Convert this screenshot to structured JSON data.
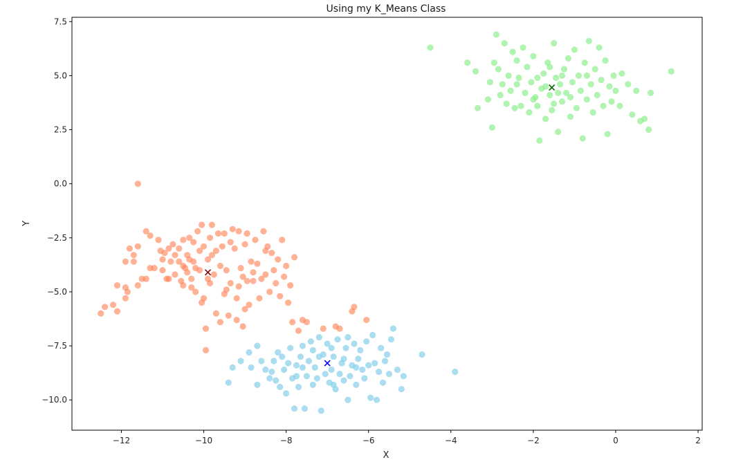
{
  "chart_data": {
    "type": "scatter",
    "title": "Using my K_Means Class",
    "xlabel": "X",
    "ylabel": "Y",
    "xlim": [
      -13.2,
      2.1
    ],
    "ylim": [
      -11.4,
      7.7
    ],
    "xticks": [
      -12,
      -10,
      -8,
      -6,
      -4,
      -2,
      0,
      2
    ],
    "xtick_labels": [
      "−12",
      "−10",
      "−8",
      "−6",
      "−4",
      "−2",
      "0",
      "2"
    ],
    "yticks": [
      -10.0,
      -7.5,
      -5.0,
      -2.5,
      0.0,
      2.5,
      5.0,
      7.5
    ],
    "ytick_labels": [
      "−10.0",
      "−7.5",
      "−5.0",
      "−2.5",
      "0.0",
      "2.5",
      "5.0",
      "7.5"
    ],
    "grid": false,
    "clusters": [
      {
        "color": "#ff7f50",
        "alpha": 0.6,
        "centroid": {
          "x": -9.9,
          "y": -4.1,
          "color": "#8b0000",
          "marker": "x"
        },
        "points": [
          [
            -11.6,
            0.0
          ],
          [
            -12.5,
            -6.0
          ],
          [
            -12.4,
            -5.7
          ],
          [
            -12.2,
            -5.6
          ],
          [
            -12.1,
            -5.9
          ],
          [
            -12.1,
            -4.7
          ],
          [
            -11.9,
            -4.8
          ],
          [
            -11.9,
            -5.3
          ],
          [
            -11.85,
            -5.0
          ],
          [
            -11.9,
            -3.6
          ],
          [
            -11.8,
            -3.0
          ],
          [
            -11.7,
            -3.6
          ],
          [
            -11.7,
            -3.3
          ],
          [
            -11.6,
            -4.7
          ],
          [
            -11.6,
            -2.9
          ],
          [
            -11.5,
            -4.4
          ],
          [
            -11.4,
            -4.4
          ],
          [
            -11.4,
            -2.2
          ],
          [
            -11.3,
            -3.9
          ],
          [
            -11.3,
            -2.4
          ],
          [
            -11.2,
            -3.9
          ],
          [
            -11.1,
            -2.6
          ],
          [
            -11.05,
            -3.1
          ],
          [
            -11.0,
            -3.5
          ],
          [
            -11.0,
            -4.0
          ],
          [
            -10.95,
            -3.2
          ],
          [
            -10.9,
            -4.4
          ],
          [
            -10.85,
            -3.0
          ],
          [
            -10.85,
            -4.4
          ],
          [
            -10.8,
            -3.6
          ],
          [
            -10.75,
            -2.8
          ],
          [
            -10.7,
            -3.3
          ],
          [
            -10.7,
            -4.2
          ],
          [
            -10.6,
            -3.0
          ],
          [
            -10.6,
            -3.6
          ],
          [
            -10.55,
            -4.5
          ],
          [
            -10.5,
            -3.8
          ],
          [
            -10.5,
            -2.6
          ],
          [
            -10.45,
            -3.9
          ],
          [
            -10.4,
            -4.1
          ],
          [
            -10.4,
            -3.3
          ],
          [
            -10.35,
            -2.5
          ],
          [
            -10.35,
            -3.5
          ],
          [
            -10.3,
            -4.4
          ],
          [
            -10.3,
            -4.8
          ],
          [
            -10.25,
            -2.7
          ],
          [
            -10.25,
            -3.6
          ],
          [
            -10.2,
            -3.9
          ],
          [
            -10.2,
            -5.0
          ],
          [
            -10.15,
            -2.2
          ],
          [
            -10.1,
            -4.0
          ],
          [
            -10.1,
            -3.1
          ],
          [
            -10.05,
            -1.9
          ],
          [
            -10.05,
            -5.5
          ],
          [
            -10.0,
            -2.9
          ],
          [
            -10.0,
            -5.3
          ],
          [
            -9.95,
            -6.7
          ],
          [
            -9.95,
            -7.7
          ],
          [
            -9.9,
            -3.5
          ],
          [
            -9.9,
            -4.4
          ],
          [
            -9.85,
            -2.5
          ],
          [
            -9.85,
            -4.6
          ],
          [
            -9.8,
            -1.9
          ],
          [
            -9.8,
            -3.3
          ],
          [
            -9.75,
            -4.2
          ],
          [
            -9.7,
            -6.0
          ],
          [
            -9.65,
            -2.3
          ],
          [
            -9.6,
            -3.8
          ],
          [
            -9.6,
            -6.4
          ],
          [
            -9.55,
            -2.9
          ],
          [
            -9.5,
            -5.1
          ],
          [
            -9.5,
            -2.3
          ],
          [
            -9.45,
            -4.0
          ],
          [
            -9.4,
            -6.1
          ],
          [
            -9.35,
            -2.7
          ],
          [
            -9.35,
            -4.6
          ],
          [
            -9.3,
            -2.1
          ],
          [
            -9.25,
            -3.0
          ],
          [
            -9.2,
            -5.3
          ],
          [
            -9.2,
            -6.3
          ],
          [
            -9.15,
            -2.2
          ],
          [
            -9.1,
            -3.9
          ],
          [
            -9.05,
            -6.6
          ],
          [
            -9.05,
            -4.3
          ],
          [
            -9.0,
            -2.8
          ],
          [
            -9.0,
            -5.8
          ],
          [
            -8.95,
            -2.3
          ],
          [
            -8.9,
            -5.6
          ],
          [
            -8.85,
            -3.6
          ],
          [
            -8.8,
            -4.1
          ],
          [
            -8.8,
            -4.5
          ],
          [
            -8.75,
            -2.6
          ],
          [
            -8.7,
            -3.7
          ],
          [
            -8.65,
            -5.3
          ],
          [
            -8.6,
            -4.4
          ],
          [
            -8.55,
            -2.2
          ],
          [
            -8.5,
            -3.1
          ],
          [
            -8.5,
            -4.2
          ],
          [
            -8.45,
            -2.9
          ],
          [
            -8.4,
            -5.0
          ],
          [
            -8.35,
            -3.2
          ],
          [
            -8.3,
            -4.0
          ],
          [
            -8.25,
            -4.6
          ],
          [
            -8.2,
            -3.5
          ],
          [
            -8.15,
            -5.2
          ],
          [
            -8.1,
            -2.6
          ],
          [
            -8.05,
            -4.3
          ],
          [
            -8.0,
            -3.8
          ],
          [
            -7.95,
            -5.5
          ],
          [
            -7.9,
            -4.7
          ],
          [
            -7.85,
            -6.4
          ],
          [
            -7.8,
            -3.4
          ],
          [
            -7.7,
            -6.8
          ],
          [
            -7.6,
            -6.3
          ],
          [
            -7.5,
            -6.4
          ],
          [
            -7.1,
            -6.7
          ],
          [
            -6.8,
            -6.6
          ],
          [
            -6.7,
            -6.7
          ],
          [
            -6.4,
            -5.9
          ],
          [
            -6.35,
            -5.7
          ],
          [
            -6.05,
            -6.3
          ],
          [
            -9.45,
            -4.9
          ],
          [
            -9.15,
            -4.75
          ],
          [
            -8.95,
            -4.5
          ],
          [
            -9.7,
            -3.1
          ],
          [
            -10.5,
            -4.7
          ]
        ]
      },
      {
        "color": "#87ceeb",
        "alpha": 0.7,
        "centroid": {
          "x": -7.0,
          "y": -8.3,
          "color": "#0000ff",
          "marker": "x"
        },
        "points": [
          [
            -9.4,
            -9.2
          ],
          [
            -9.3,
            -8.5
          ],
          [
            -9.1,
            -8.2
          ],
          [
            -8.9,
            -7.8
          ],
          [
            -8.85,
            -8.5
          ],
          [
            -8.7,
            -9.3
          ],
          [
            -8.6,
            -8.2
          ],
          [
            -8.5,
            -8.6
          ],
          [
            -8.4,
            -9.0
          ],
          [
            -8.35,
            -8.7
          ],
          [
            -8.3,
            -8.2
          ],
          [
            -8.25,
            -9.1
          ],
          [
            -8.2,
            -7.8
          ],
          [
            -8.15,
            -9.4
          ],
          [
            -8.1,
            -8.0
          ],
          [
            -8.05,
            -8.6
          ],
          [
            -8.0,
            -9.7
          ],
          [
            -7.95,
            -8.3
          ],
          [
            -7.9,
            -7.6
          ],
          [
            -7.85,
            -9.0
          ],
          [
            -7.8,
            -10.4
          ],
          [
            -7.75,
            -8.4
          ],
          [
            -7.7,
            -9.4
          ],
          [
            -7.65,
            -8.0
          ],
          [
            -7.6,
            -7.5
          ],
          [
            -7.55,
            -10.4
          ],
          [
            -7.5,
            -8.9
          ],
          [
            -7.45,
            -8.2
          ],
          [
            -7.4,
            -7.3
          ],
          [
            -7.35,
            -9.3
          ],
          [
            -7.3,
            -8.5
          ],
          [
            -7.25,
            -9.0
          ],
          [
            -7.2,
            -7.1
          ],
          [
            -7.15,
            -10.5
          ],
          [
            -7.1,
            -7.9
          ],
          [
            -7.05,
            -8.8
          ],
          [
            -7.0,
            -7.4
          ],
          [
            -6.95,
            -9.2
          ],
          [
            -6.9,
            -8.6
          ],
          [
            -6.85,
            -8.0
          ],
          [
            -6.8,
            -9.5
          ],
          [
            -6.75,
            -7.2
          ],
          [
            -6.7,
            -8.8
          ],
          [
            -6.65,
            -8.3
          ],
          [
            -6.6,
            -9.1
          ],
          [
            -6.55,
            -7.6
          ],
          [
            -6.5,
            -10.0
          ],
          [
            -6.45,
            -8.9
          ],
          [
            -6.4,
            -8.4
          ],
          [
            -6.35,
            -7.4
          ],
          [
            -6.3,
            -9.3
          ],
          [
            -6.25,
            -8.1
          ],
          [
            -6.2,
            -7.7
          ],
          [
            -6.15,
            -8.6
          ],
          [
            -6.1,
            -9.0
          ],
          [
            -6.05,
            -7.3
          ],
          [
            -6.0,
            -8.4
          ],
          [
            -5.95,
            -9.9
          ],
          [
            -5.9,
            -7.0
          ],
          [
            -5.85,
            -8.3
          ],
          [
            -5.8,
            -10.0
          ],
          [
            -5.75,
            -8.7
          ],
          [
            -5.7,
            -7.6
          ],
          [
            -5.65,
            -9.2
          ],
          [
            -5.6,
            -8.2
          ],
          [
            -5.55,
            -7.9
          ],
          [
            -5.5,
            -8.8
          ],
          [
            -5.45,
            -7.2
          ],
          [
            -5.4,
            -6.7
          ],
          [
            -5.3,
            -8.6
          ],
          [
            -5.2,
            -9.5
          ],
          [
            -5.15,
            -8.9
          ],
          [
            -4.7,
            -7.9
          ],
          [
            -3.9,
            -8.7
          ],
          [
            -8.7,
            -7.5
          ],
          [
            -7.75,
            -8.9
          ],
          [
            -7.2,
            -8.0
          ],
          [
            -6.9,
            -7.6
          ],
          [
            -6.6,
            -8.1
          ],
          [
            -6.5,
            -7.1
          ],
          [
            -6.85,
            -9.3
          ],
          [
            -7.35,
            -7.7
          ],
          [
            -7.6,
            -8.5
          ],
          [
            -6.3,
            -8.5
          ]
        ]
      },
      {
        "color": "#90ee90",
        "alpha": 0.7,
        "centroid": {
          "x": -1.55,
          "y": 4.45,
          "color": "#006400",
          "marker": "x"
        },
        "points": [
          [
            -4.5,
            6.3
          ],
          [
            -3.6,
            5.6
          ],
          [
            -3.4,
            5.2
          ],
          [
            -3.35,
            3.5
          ],
          [
            -3.1,
            3.9
          ],
          [
            -3.05,
            4.7
          ],
          [
            -3.0,
            2.6
          ],
          [
            -2.95,
            5.6
          ],
          [
            -2.9,
            6.9
          ],
          [
            -2.85,
            5.3
          ],
          [
            -2.8,
            4.1
          ],
          [
            -2.75,
            4.6
          ],
          [
            -2.7,
            6.5
          ],
          [
            -2.65,
            3.7
          ],
          [
            -2.6,
            5.0
          ],
          [
            -2.55,
            4.3
          ],
          [
            -2.5,
            6.1
          ],
          [
            -2.45,
            3.5
          ],
          [
            -2.4,
            5.7
          ],
          [
            -2.35,
            4.9
          ],
          [
            -2.3,
            3.6
          ],
          [
            -2.25,
            6.3
          ],
          [
            -2.2,
            4.2
          ],
          [
            -2.15,
            5.4
          ],
          [
            -2.1,
            3.3
          ],
          [
            -2.05,
            4.7
          ],
          [
            -2.0,
            5.9
          ],
          [
            -1.95,
            4.0
          ],
          [
            -1.9,
            3.6
          ],
          [
            -1.85,
            2.0
          ],
          [
            -1.8,
            4.4
          ],
          [
            -1.75,
            5.1
          ],
          [
            -1.7,
            3.0
          ],
          [
            -1.65,
            5.6
          ],
          [
            -1.6,
            4.1
          ],
          [
            -1.55,
            3.4
          ],
          [
            -1.5,
            6.5
          ],
          [
            -1.45,
            4.9
          ],
          [
            -1.4,
            2.4
          ],
          [
            -1.35,
            4.6
          ],
          [
            -1.3,
            3.8
          ],
          [
            -1.25,
            5.3
          ],
          [
            -1.2,
            4.2
          ],
          [
            -1.15,
            5.8
          ],
          [
            -1.1,
            3.1
          ],
          [
            -1.05,
            4.7
          ],
          [
            -1.0,
            6.2
          ],
          [
            -0.95,
            3.5
          ],
          [
            -0.9,
            5.0
          ],
          [
            -0.85,
            4.3
          ],
          [
            -0.8,
            2.1
          ],
          [
            -0.75,
            5.6
          ],
          [
            -0.7,
            3.9
          ],
          [
            -0.65,
            6.6
          ],
          [
            -0.6,
            4.6
          ],
          [
            -0.55,
            3.3
          ],
          [
            -0.5,
            5.3
          ],
          [
            -0.45,
            4.1
          ],
          [
            -0.4,
            6.3
          ],
          [
            -0.35,
            4.8
          ],
          [
            -0.3,
            3.6
          ],
          [
            -0.25,
            5.7
          ],
          [
            -0.2,
            2.3
          ],
          [
            -0.15,
            4.5
          ],
          [
            -0.1,
            3.8
          ],
          [
            -0.05,
            5.0
          ],
          [
            0.0,
            4.3
          ],
          [
            0.1,
            3.6
          ],
          [
            0.15,
            5.1
          ],
          [
            0.3,
            4.6
          ],
          [
            0.4,
            3.2
          ],
          [
            0.5,
            4.3
          ],
          [
            0.6,
            2.9
          ],
          [
            0.7,
            3.0
          ],
          [
            0.8,
            2.5
          ],
          [
            0.85,
            4.2
          ],
          [
            1.35,
            5.2
          ],
          [
            -1.7,
            4.5
          ],
          [
            -1.4,
            4.2
          ],
          [
            -1.3,
            5.0
          ],
          [
            -1.9,
            4.9
          ],
          [
            -2.0,
            3.9
          ],
          [
            -1.1,
            4.0
          ],
          [
            -0.7,
            5.0
          ],
          [
            -2.4,
            4.6
          ],
          [
            -1.6,
            5.4
          ],
          [
            -1.5,
            3.7
          ]
        ]
      }
    ]
  }
}
